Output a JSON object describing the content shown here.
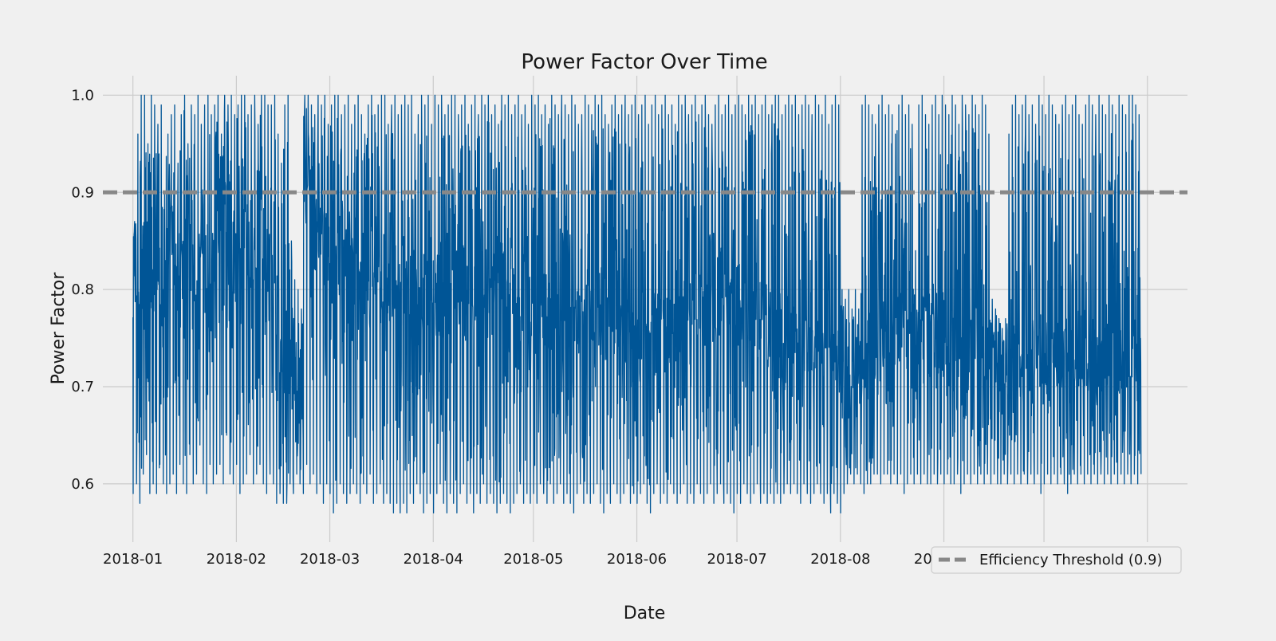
{
  "chart_data": {
    "type": "line",
    "title": "Power Factor Over Time",
    "xlabel": "Date",
    "ylabel": "Power Factor",
    "x_range": [
      "2017-12-23",
      "2018-11-13"
    ],
    "data_range": [
      "2018-01-01",
      "2018-10-31"
    ],
    "ylim": [
      0.54,
      1.02
    ],
    "x_ticks": [
      "2018-01",
      "2018-02",
      "2018-03",
      "2018-04",
      "2018-05",
      "2018-06",
      "2018-07",
      "2018-08",
      "2018-09",
      "2018-10",
      "2018-11"
    ],
    "y_ticks": [
      0.6,
      0.7,
      0.8,
      0.9,
      1.0
    ],
    "y_tick_labels": [
      "0.6",
      "0.7",
      "0.8",
      "0.9",
      "1.0"
    ],
    "grid": true,
    "legend_position": "bottom-right",
    "series": [
      {
        "color": "#005596",
        "resolution": "hourly",
        "values_daily_min": [
          0.59,
          0.6,
          0.58,
          0.61,
          0.63,
          0.59,
          0.6,
          0.59,
          0.62,
          0.6,
          0.59,
          0.6,
          0.61,
          0.59,
          0.62,
          0.6,
          0.59,
          0.63,
          0.6,
          0.61,
          0.64,
          0.6,
          0.59,
          0.62,
          0.6,
          0.61,
          0.62,
          0.6,
          0.65,
          0.61,
          0.6,
          0.62,
          0.59,
          0.6,
          0.61,
          0.63,
          0.6,
          0.61,
          0.62,
          0.6,
          0.59,
          0.61,
          0.6,
          0.58,
          0.59,
          0.58,
          0.58,
          0.6,
          0.59,
          0.61,
          0.6,
          0.59,
          0.62,
          0.6,
          0.61,
          0.59,
          0.6,
          0.58,
          0.6,
          0.59,
          0.57,
          0.58,
          0.6,
          0.59,
          0.58,
          0.59,
          0.6,
          0.59,
          0.58,
          0.6,
          0.59,
          0.61,
          0.58,
          0.59,
          0.6,
          0.58,
          0.59,
          0.58,
          0.57,
          0.58,
          0.57,
          0.58,
          0.57,
          0.59,
          0.58,
          0.6,
          0.59,
          0.57,
          0.58,
          0.59,
          0.57,
          0.59,
          0.6,
          0.58,
          0.57,
          0.59,
          0.58,
          0.57,
          0.59,
          0.6,
          0.58,
          0.59,
          0.57,
          0.59,
          0.58,
          0.6,
          0.58,
          0.59,
          0.58,
          0.57,
          0.58,
          0.59,
          0.58,
          0.57,
          0.58,
          0.59,
          0.6,
          0.58,
          0.59,
          0.58,
          0.59,
          0.58,
          0.6,
          0.59,
          0.58,
          0.6,
          0.58,
          0.59,
          0.6,
          0.58,
          0.59,
          0.58,
          0.57,
          0.59,
          0.6,
          0.58,
          0.59,
          0.58,
          0.59,
          0.6,
          0.58,
          0.57,
          0.59,
          0.58,
          0.6,
          0.59,
          0.58,
          0.59,
          0.6,
          0.58,
          0.59,
          0.58,
          0.59,
          0.6,
          0.58,
          0.57,
          0.59,
          0.6,
          0.58,
          0.59,
          0.58,
          0.6,
          0.59,
          0.58,
          0.59,
          0.6,
          0.58,
          0.59,
          0.58,
          0.6,
          0.59,
          0.58,
          0.59,
          0.6,
          0.58,
          0.59,
          0.6,
          0.58,
          0.59,
          0.58,
          0.57,
          0.59,
          0.58,
          0.6,
          0.59,
          0.58,
          0.59,
          0.6,
          0.58,
          0.59,
          0.58,
          0.59,
          0.58,
          0.59,
          0.58,
          0.59,
          0.6,
          0.59,
          0.6,
          0.59,
          0.58,
          0.6,
          0.59,
          0.58,
          0.59,
          0.6,
          0.59,
          0.58,
          0.59,
          0.57,
          0.59,
          0.58,
          0.57,
          0.59,
          0.6,
          0.61,
          0.6,
          0.61,
          0.6,
          0.59,
          0.6,
          0.6,
          0.61,
          0.61,
          0.6,
          0.61,
          0.61,
          0.6,
          0.61,
          0.6,
          0.61,
          0.59,
          0.6,
          0.61,
          0.6,
          0.61,
          0.6,
          0.61,
          0.6,
          0.6,
          0.61,
          0.6,
          0.61,
          0.6,
          0.61,
          0.6,
          0.6,
          0.61,
          0.59,
          0.6,
          0.61,
          0.6,
          0.61,
          0.6,
          0.61,
          0.6,
          0.61,
          0.6,
          0.61,
          0.6,
          0.6,
          0.61,
          0.6,
          0.61,
          0.6,
          0.61,
          0.6,
          0.61,
          0.6,
          0.61,
          0.6,
          0.61,
          0.59,
          0.6,
          0.61,
          0.6,
          0.61,
          0.6,
          0.61,
          0.6,
          0.59,
          0.6,
          0.61,
          0.6,
          0.61,
          0.6,
          0.61,
          0.6,
          0.61,
          0.6,
          0.61,
          0.6,
          0.61,
          0.6,
          0.61,
          0.6,
          0.61,
          0.6,
          0.61,
          0.6,
          0.61,
          0.6,
          0.61,
          0.61,
          0.6,
          0.61,
          0.6,
          0.61,
          0.6,
          0.61,
          0.6
        ],
        "values_daily_max": [
          0.87,
          0.96,
          1.0,
          1.0,
          0.95,
          1.0,
          0.99,
          0.97,
          0.99,
          0.9,
          0.96,
          0.98,
          0.99,
          0.93,
          0.98,
          1.0,
          0.95,
          0.99,
          0.98,
          1.0,
          0.97,
          0.99,
          1.0,
          0.98,
          0.99,
          1.0,
          0.96,
          1.0,
          0.99,
          1.0,
          0.98,
          0.99,
          1.0,
          1.0,
          0.98,
          0.99,
          1.0,
          0.97,
          1.0,
          1.0,
          0.99,
          0.99,
          1.0,
          0.96,
          0.93,
          0.99,
          1.0,
          0.85,
          0.81,
          0.8,
          0.78,
          1.0,
          1.0,
          0.99,
          0.98,
          1.0,
          0.99,
          1.0,
          0.97,
          0.99,
          1.0,
          1.0,
          0.98,
          0.99,
          1.0,
          0.97,
          0.99,
          1.0,
          0.98,
          0.96,
          0.99,
          1.0,
          0.98,
          0.99,
          1.0,
          1.0,
          0.97,
          0.99,
          1.0,
          0.98,
          0.99,
          1.0,
          0.99,
          1.0,
          0.96,
          0.98,
          1.0,
          0.99,
          1.0,
          0.97,
          1.0,
          0.99,
          1.0,
          0.98,
          0.99,
          1.0,
          1.0,
          0.98,
          0.99,
          1.0,
          0.97,
          0.99,
          1.0,
          0.98,
          1.0,
          0.99,
          1.0,
          0.98,
          0.99,
          0.97,
          1.0,
          0.99,
          1.0,
          0.98,
          0.99,
          1.0,
          0.98,
          0.99,
          0.97,
          1.0,
          0.99,
          1.0,
          0.98,
          0.99,
          0.97,
          1.0,
          0.99,
          0.98,
          1.0,
          0.99,
          0.98,
          1.0,
          0.99,
          0.97,
          0.98,
          1.0,
          0.99,
          0.98,
          1.0,
          0.99,
          1.0,
          0.98,
          0.97,
          0.99,
          1.0,
          0.98,
          0.99,
          1.0,
          0.98,
          0.99,
          1.0,
          0.98,
          0.99,
          1.0,
          0.97,
          0.99,
          1.0,
          0.98,
          0.99,
          1.0,
          0.98,
          0.99,
          0.97,
          1.0,
          0.99,
          1.0,
          0.98,
          0.99,
          1.0,
          0.98,
          0.99,
          1.0,
          0.98,
          0.97,
          0.99,
          1.0,
          0.98,
          0.99,
          1.0,
          0.98,
          0.99,
          1.0,
          0.99,
          0.98,
          1.0,
          0.99,
          1.0,
          0.98,
          0.99,
          1.0,
          0.98,
          0.99,
          1.0,
          1.0,
          0.98,
          0.99,
          1.0,
          0.99,
          1.0,
          0.98,
          0.99,
          1.0,
          0.99,
          0.98,
          1.0,
          0.99,
          0.98,
          1.0,
          0.97,
          0.99,
          1.0,
          0.99,
          0.8,
          0.79,
          0.8,
          0.78,
          0.8,
          0.78,
          0.99,
          1.0,
          0.99,
          0.98,
          0.97,
          0.99,
          1.0,
          0.98,
          0.99,
          0.98,
          0.96,
          0.99,
          1.0,
          0.98,
          0.99,
          0.97,
          0.84,
          0.99,
          1.0,
          0.98,
          0.97,
          0.99,
          1.0,
          0.98,
          1.0,
          0.99,
          0.98,
          1.0,
          0.99,
          0.97,
          1.0,
          0.99,
          0.98,
          1.0,
          0.99,
          0.98,
          1.0,
          0.99,
          0.96,
          0.79,
          0.78,
          0.77,
          0.76,
          0.77,
          0.96,
          0.99,
          1.0,
          0.98,
          0.99,
          1.0,
          0.98,
          0.99,
          0.97,
          1.0,
          0.99,
          0.98,
          1.0,
          0.99,
          0.98,
          0.97,
          0.99,
          1.0,
          0.98,
          0.99,
          1.0,
          0.98,
          0.97,
          0.99,
          1.0,
          0.99,
          0.98,
          1.0,
          0.99,
          0.98,
          1.0,
          0.99,
          0.98,
          1.0,
          0.99,
          0.98,
          1.0,
          1.0,
          0.99,
          0.98
        ],
        "values_daily_mean": [
          0.84,
          0.8,
          0.82,
          0.86,
          0.83,
          0.78,
          0.85,
          0.82,
          0.8,
          0.79,
          0.84,
          0.86,
          0.83,
          0.8,
          0.82,
          0.85,
          0.88,
          0.84,
          0.8,
          0.82,
          0.86,
          0.83,
          0.8,
          0.81,
          0.84,
          0.86,
          0.9,
          0.87,
          0.84,
          0.82,
          0.85,
          0.88,
          0.86,
          0.84,
          0.82,
          0.8,
          0.83,
          0.85,
          0.87,
          0.84,
          0.82,
          0.8,
          0.83,
          0.78,
          0.75,
          0.72,
          0.7,
          0.72,
          0.71,
          0.7,
          0.71,
          0.88,
          0.9,
          0.86,
          0.84,
          0.86,
          0.88,
          0.85,
          0.83,
          0.8,
          0.82,
          0.84,
          0.86,
          0.83,
          0.8,
          0.82,
          0.85,
          0.83,
          0.8,
          0.79,
          0.82,
          0.84,
          0.8,
          0.82,
          0.79,
          0.81,
          0.8,
          0.79,
          0.81,
          0.8,
          0.78,
          0.8,
          0.79,
          0.81,
          0.8,
          0.78,
          0.79,
          0.8,
          0.79,
          0.78,
          0.8,
          0.79,
          0.81,
          0.8,
          0.79,
          0.8,
          0.78,
          0.79,
          0.8,
          0.81,
          0.8,
          0.79,
          0.8,
          0.79,
          0.81,
          0.8,
          0.79,
          0.8,
          0.81,
          0.82,
          0.81,
          0.8,
          0.79,
          0.8,
          0.79,
          0.78,
          0.79,
          0.8,
          0.78,
          0.79,
          0.77,
          0.78,
          0.79,
          0.78,
          0.77,
          0.78,
          0.79,
          0.78,
          0.77,
          0.78,
          0.76,
          0.77,
          0.78,
          0.77,
          0.78,
          0.77,
          0.76,
          0.77,
          0.76,
          0.77,
          0.76,
          0.75,
          0.76,
          0.77,
          0.76,
          0.75,
          0.76,
          0.75,
          0.76,
          0.75,
          0.74,
          0.75,
          0.76,
          0.75,
          0.74,
          0.76,
          0.75,
          0.77,
          0.76,
          0.75,
          0.76,
          0.77,
          0.76,
          0.77,
          0.78,
          0.77,
          0.78,
          0.77,
          0.78,
          0.79,
          0.78,
          0.77,
          0.78,
          0.79,
          0.78,
          0.79,
          0.8,
          0.79,
          0.78,
          0.79,
          0.78,
          0.79,
          0.78,
          0.77,
          0.78,
          0.79,
          0.78,
          0.77,
          0.78,
          0.77,
          0.76,
          0.77,
          0.76,
          0.77,
          0.76,
          0.75,
          0.76,
          0.75,
          0.76,
          0.75,
          0.74,
          0.75,
          0.74,
          0.75,
          0.74,
          0.73,
          0.74,
          0.75,
          0.74,
          0.73,
          0.74,
          0.73,
          0.72,
          0.71,
          0.7,
          0.71,
          0.72,
          0.71,
          0.72,
          0.76,
          0.77,
          0.76,
          0.75,
          0.76,
          0.77,
          0.76,
          0.75,
          0.76,
          0.77,
          0.76,
          0.78,
          0.77,
          0.76,
          0.77,
          0.76,
          0.75,
          0.76,
          0.77,
          0.76,
          0.75,
          0.76,
          0.75,
          0.74,
          0.75,
          0.76,
          0.75,
          0.74,
          0.75,
          0.74,
          0.73,
          0.74,
          0.75,
          0.74,
          0.73,
          0.74,
          0.73,
          0.72,
          0.73,
          0.74,
          0.73,
          0.72,
          0.73,
          0.72,
          0.73,
          0.72,
          0.71,
          0.72,
          0.71,
          0.7,
          0.71,
          0.72,
          0.73,
          0.72,
          0.73,
          0.72,
          0.73,
          0.74,
          0.73,
          0.72,
          0.73,
          0.72,
          0.73,
          0.72,
          0.73,
          0.74,
          0.73,
          0.72,
          0.73,
          0.72,
          0.73,
          0.74,
          0.73,
          0.74,
          0.73,
          0.72,
          0.73,
          0.74,
          0.73,
          0.72,
          0.73,
          0.74,
          0.73,
          0.72,
          0.73,
          0.74,
          0.73,
          0.72,
          0.73,
          0.74,
          0.73,
          0.72,
          0.73,
          0.74,
          0.73,
          0.72,
          0.73,
          0.72,
          0.73,
          0.74,
          0.73,
          0.72,
          0.73,
          0.74,
          0.73,
          0.74,
          0.75
        ]
      }
    ],
    "reference_line": {
      "y": 0.9,
      "label": "Efficiency Threshold (0.9)",
      "color": "#888888",
      "style": "dashed"
    }
  }
}
